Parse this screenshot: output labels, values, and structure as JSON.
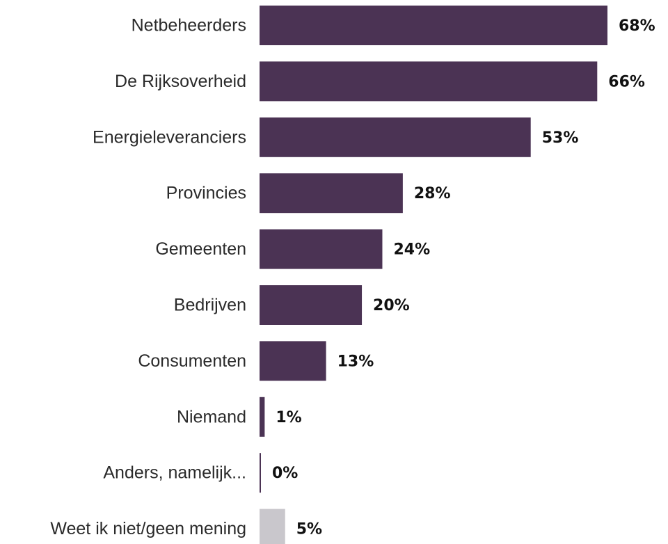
{
  "chart_data": {
    "type": "bar",
    "orientation": "horizontal",
    "categories": [
      "Netbeheerders",
      "De Rijksoverheid",
      "Energieleveranciers",
      "Provincies",
      "Gemeenten",
      "Bedrijven",
      "Consumenten",
      "Niemand",
      "Anders, namelijk...",
      "Weet ik niet/geen mening"
    ],
    "values": [
      68,
      66,
      53,
      28,
      24,
      20,
      13,
      1,
      0,
      5
    ],
    "value_labels": [
      "68%",
      "66%",
      "53%",
      "28%",
      "24%",
      "20%",
      "13%",
      "1%",
      "0%",
      "5%"
    ],
    "unit": "%",
    "xlim": [
      0,
      68
    ],
    "grid": false,
    "legend": "none",
    "colors": {
      "main": "#4b3354",
      "neutral": "#c9c7cc"
    },
    "bar_colors": [
      "main",
      "main",
      "main",
      "main",
      "main",
      "main",
      "main",
      "main",
      "main",
      "neutral"
    ]
  }
}
